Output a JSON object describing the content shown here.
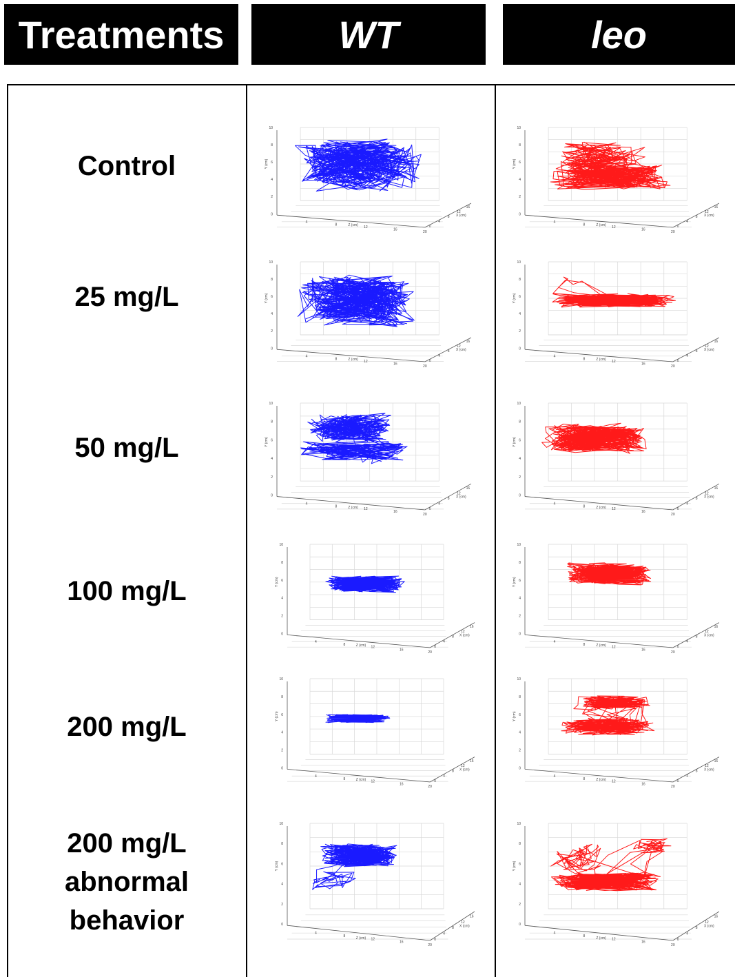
{
  "headers": {
    "treatments": "Treatments",
    "wt": "WT",
    "leo": "leo"
  },
  "rows": [
    {
      "label_lines": [
        "Control"
      ]
    },
    {
      "label_lines": [
        "25 mg/L"
      ]
    },
    {
      "label_lines": [
        "50 mg/L"
      ]
    },
    {
      "label_lines": [
        "100 mg/L"
      ]
    },
    {
      "label_lines": [
        "200 mg/L"
      ]
    },
    {
      "label_lines": [
        "200 mg/L",
        "abnormal",
        "behavior"
      ]
    }
  ],
  "plot_axes": {
    "y_label": "Y (cm)",
    "x_label": "X (cm)",
    "z_label": "Z (cm)",
    "y_ticks": [
      "0",
      "2",
      "4",
      "6",
      "8",
      "10"
    ],
    "z_ticks": [
      "4",
      "8",
      "12",
      "16",
      "20"
    ],
    "x_ticks": [
      "0",
      "4",
      "8",
      "12",
      "16",
      "20"
    ]
  },
  "colors": {
    "wt_trace": "#1a1aff",
    "leo_trace": "#ff1a1a",
    "header_bg": "#000000",
    "header_text": "#ffffff"
  }
}
